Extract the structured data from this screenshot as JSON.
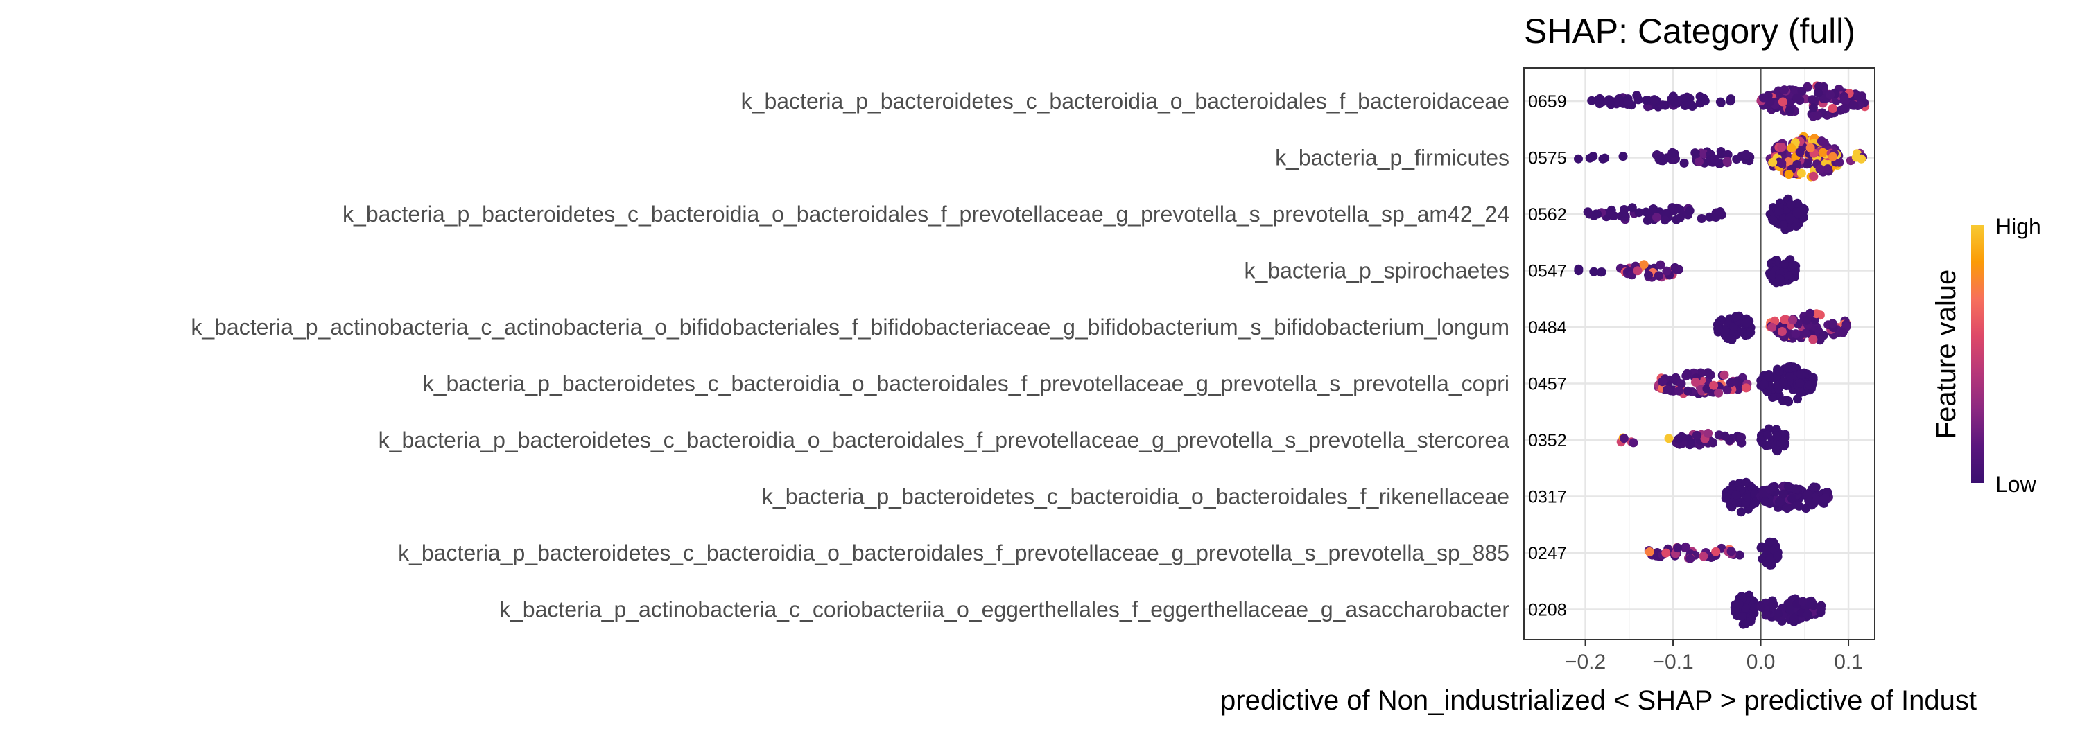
{
  "chart_data": {
    "type": "scatter",
    "subtype": "shap-beeswarm",
    "title": "SHAP: Category (full)",
    "xlabel": "predictive of Non_industrialized < SHAP > predictive of Indust",
    "xlim": [
      -0.27,
      0.13
    ],
    "x_ticks": [
      {
        "value": -0.2,
        "label": "−0.2"
      },
      {
        "value": -0.1,
        "label": "−0.1"
      },
      {
        "value": 0.0,
        "label": "0.0"
      },
      {
        "value": 0.1,
        "label": "0.1"
      }
    ],
    "grid": true,
    "reference_line": 0,
    "legend": {
      "title": "Feature value",
      "high_label": "High",
      "low_label": "Low",
      "position": "right",
      "colors": [
        "#3b0f70",
        "#5a167e",
        "#8c2981",
        "#b73779",
        "#de4968",
        "#f7705c",
        "#fb9b06",
        "#f8c932"
      ]
    },
    "features": [
      {
        "name": "k_bacteria_p_bacteroidetes_c_bacteroidia_o_bacteroidales_f_bacteroidaceae",
        "mean_abs_shap": "0659",
        "clusters": [
          {
            "from": -0.2,
            "to": -0.03,
            "h": 0.22,
            "n": 60,
            "hot": 0.05
          },
          {
            "from": 0.0,
            "to": 0.12,
            "h": 0.55,
            "n": 120,
            "hot": 0.25
          }
        ]
      },
      {
        "name": "k_bacteria_p_firmicutes",
        "mean_abs_shap": "0575",
        "clusters": [
          {
            "from": -0.21,
            "to": -0.15,
            "h": 0.12,
            "n": 6,
            "hot": 0.0
          },
          {
            "from": -0.12,
            "to": -0.01,
            "h": 0.28,
            "n": 50,
            "hot": 0.1
          },
          {
            "from": 0.01,
            "to": 0.09,
            "h": 0.75,
            "n": 160,
            "hot": 0.45
          },
          {
            "from": 0.09,
            "to": 0.12,
            "h": 0.2,
            "n": 6,
            "hot": 0.8
          }
        ]
      },
      {
        "name": "k_bacteria_p_bacteroidetes_c_bacteroidia_o_bacteroidales_f_prevotellaceae_g_prevotella_s_prevotella_sp_am42_24",
        "mean_abs_shap": "0562",
        "clusters": [
          {
            "from": -0.2,
            "to": -0.04,
            "h": 0.25,
            "n": 55,
            "hot": 0.08
          },
          {
            "from": 0.01,
            "to": 0.05,
            "h": 0.55,
            "n": 70,
            "hot": 0.0
          }
        ]
      },
      {
        "name": "k_bacteria_p_spirochaetes",
        "mean_abs_shap": "0547",
        "clusters": [
          {
            "from": -0.21,
            "to": -0.17,
            "h": 0.12,
            "n": 5,
            "hot": 0.0
          },
          {
            "from": -0.16,
            "to": -0.09,
            "h": 0.25,
            "n": 30,
            "hot": 0.35
          },
          {
            "from": 0.01,
            "to": 0.04,
            "h": 0.55,
            "n": 60,
            "hot": 0.0
          }
        ]
      },
      {
        "name": "k_bacteria_p_actinobacteria_c_actinobacteria_o_bifidobacteriales_f_bifidobacteriaceae_g_bifidobacterium_s_bifidobacterium_longum",
        "mean_abs_shap": "0484",
        "clusters": [
          {
            "from": -0.05,
            "to": -0.01,
            "h": 0.5,
            "n": 60,
            "hot": 0.0
          },
          {
            "from": 0.01,
            "to": 0.1,
            "h": 0.5,
            "n": 70,
            "hot": 0.3
          }
        ]
      },
      {
        "name": "k_bacteria_p_bacteroidetes_c_bacteroidia_o_bacteroidales_f_prevotellaceae_g_prevotella_s_prevotella_copri",
        "mean_abs_shap": "0457",
        "clusters": [
          {
            "from": -0.12,
            "to": -0.01,
            "h": 0.42,
            "n": 70,
            "hot": 0.3
          },
          {
            "from": 0.0,
            "to": 0.06,
            "h": 0.65,
            "n": 100,
            "hot": 0.0
          }
        ]
      },
      {
        "name": "k_bacteria_p_bacteroidetes_c_bacteroidia_o_bacteroidales_f_prevotellaceae_g_prevotella_s_prevotella_stercorea",
        "mean_abs_shap": "0352",
        "clusters": [
          {
            "from": -0.17,
            "to": -0.1,
            "h": 0.12,
            "n": 6,
            "hot": 0.6
          },
          {
            "from": -0.1,
            "to": -0.02,
            "h": 0.3,
            "n": 35,
            "hot": 0.2
          },
          {
            "from": 0.0,
            "to": 0.03,
            "h": 0.45,
            "n": 40,
            "hot": 0.0
          }
        ]
      },
      {
        "name": "k_bacteria_p_bacteroidetes_c_bacteroidia_o_bacteroidales_f_rikenellaceae",
        "mean_abs_shap": "0317",
        "clusters": [
          {
            "from": -0.04,
            "to": -0.005,
            "h": 0.55,
            "n": 70,
            "hot": 0.0
          },
          {
            "from": 0.0,
            "to": 0.08,
            "h": 0.5,
            "n": 90,
            "hot": 0.05
          }
        ]
      },
      {
        "name": "k_bacteria_p_bacteroidetes_c_bacteroidia_o_bacteroidales_f_prevotellaceae_g_prevotella_s_prevotella_sp_885",
        "mean_abs_shap": "0247",
        "clusters": [
          {
            "from": -0.13,
            "to": -0.02,
            "h": 0.22,
            "n": 40,
            "hot": 0.35
          },
          {
            "from": 0.0,
            "to": 0.02,
            "h": 0.5,
            "n": 30,
            "hot": 0.0
          }
        ]
      },
      {
        "name": "k_bacteria_p_actinobacteria_c_coriobacteriia_o_eggerthellales_f_eggerthellaceae_g_asaccharobacter",
        "mean_abs_shap": "0208",
        "clusters": [
          {
            "from": -0.03,
            "to": -0.005,
            "h": 0.55,
            "n": 60,
            "hot": 0.0
          },
          {
            "from": 0.0,
            "to": 0.07,
            "h": 0.45,
            "n": 70,
            "hot": 0.05
          }
        ]
      }
    ]
  }
}
